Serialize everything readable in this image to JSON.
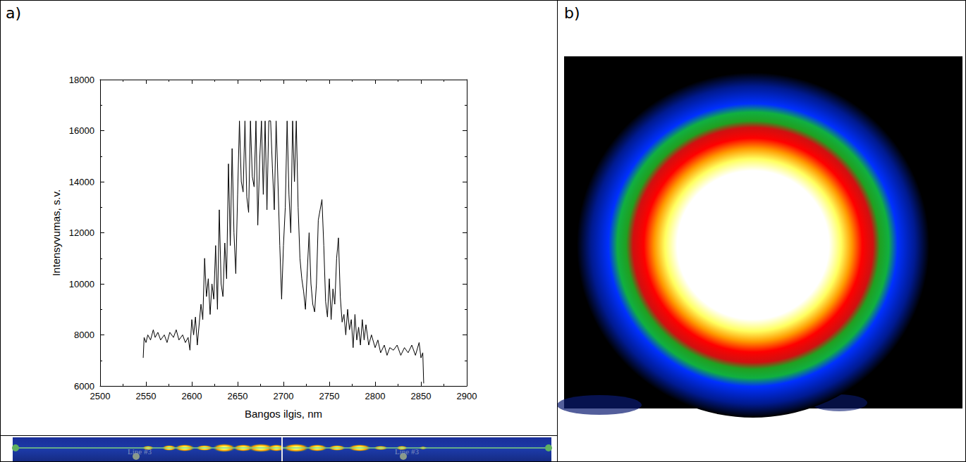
{
  "chart_data": {
    "type": "line",
    "x_label": "Bangos ilgis, nm",
    "y_label": "Intensyvumas, s.v.",
    "color": "#000000",
    "grid": false,
    "xlim": [
      2500,
      2900
    ],
    "xticks": [
      2500,
      2550,
      2600,
      2650,
      2700,
      2750,
      2800,
      2850,
      2900
    ],
    "ylim": [
      6000,
      18000
    ],
    "yticks": [
      6000,
      8000,
      10000,
      12000,
      14000,
      16000,
      18000
    ],
    "x": [
      2547,
      2548,
      2550,
      2552,
      2555,
      2558,
      2560,
      2563,
      2566,
      2570,
      2573,
      2576,
      2580,
      2583,
      2586,
      2590,
      2593,
      2596,
      2598,
      2600,
      2602,
      2604,
      2606,
      2608,
      2610,
      2612,
      2614,
      2616,
      2618,
      2620,
      2622,
      2624,
      2626,
      2628,
      2630,
      2632,
      2634,
      2636,
      2638,
      2640,
      2642,
      2644,
      2646,
      2648,
      2650,
      2652,
      2654,
      2656,
      2658,
      2660,
      2662,
      2664,
      2666,
      2668,
      2670,
      2672,
      2674,
      2676,
      2678,
      2680,
      2682,
      2684,
      2686,
      2688,
      2690,
      2692,
      2694,
      2696,
      2698,
      2700,
      2702,
      2704,
      2706,
      2708,
      2710,
      2712,
      2714,
      2716,
      2718,
      2720,
      2722,
      2724,
      2726,
      2728,
      2730,
      2732,
      2734,
      2736,
      2738,
      2740,
      2742,
      2744,
      2746,
      2748,
      2750,
      2752,
      2754,
      2756,
      2758,
      2760,
      2762,
      2764,
      2766,
      2768,
      2770,
      2772,
      2774,
      2776,
      2778,
      2780,
      2782,
      2784,
      2786,
      2788,
      2790,
      2793,
      2796,
      2800,
      2803,
      2806,
      2810,
      2813,
      2816,
      2820,
      2824,
      2828,
      2832,
      2836,
      2840,
      2844,
      2848,
      2850,
      2852,
      2853
    ],
    "values": [
      7100,
      7900,
      7700,
      8000,
      7800,
      8200,
      7900,
      8100,
      7800,
      8000,
      7700,
      8100,
      7900,
      8200,
      7800,
      8000,
      7700,
      7900,
      7400,
      8600,
      8000,
      8700,
      7600,
      8400,
      9200,
      8600,
      11000,
      9500,
      10200,
      8800,
      10000,
      9400,
      11500,
      9000,
      12900,
      10000,
      9500,
      11600,
      10200,
      14700,
      11500,
      15300,
      12000,
      10400,
      13500,
      16380,
      14000,
      13600,
      16380,
      13400,
      12800,
      16380,
      14200,
      13800,
      16380,
      12300,
      14800,
      16380,
      13500,
      16380,
      12900,
      16380,
      16380,
      14500,
      12900,
      16380,
      14000,
      11500,
      9400,
      11500,
      13000,
      16380,
      13500,
      12000,
      16380,
      14000,
      16380,
      13000,
      11000,
      10200,
      9700,
      9000,
      10500,
      12000,
      10000,
      9200,
      8900,
      10000,
      12500,
      12900,
      13300,
      11500,
      9300,
      8700,
      10200,
      8600,
      9800,
      9200,
      11000,
      11800,
      9500,
      8500,
      8800,
      8000,
      9000,
      8200,
      8600,
      7500,
      8800,
      7800,
      8300,
      7600,
      8600,
      7800,
      8400,
      7600,
      8000,
      7500,
      7800,
      7300,
      7600,
      7200,
      7500,
      7400,
      7600,
      7200,
      7500,
      7300,
      7600,
      7200,
      7700,
      7100,
      7300,
      6100
    ]
  },
  "panel_labels": [
    "a)",
    "b)"
  ],
  "strip_labels": [
    "Line #3",
    "Line #3"
  ]
}
